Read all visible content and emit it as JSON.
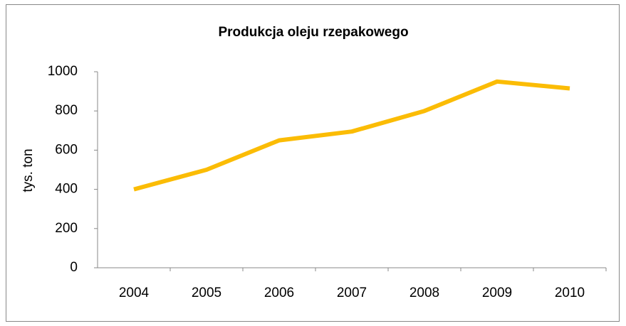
{
  "chart_data": {
    "type": "line",
    "title": "Produkcja oleju rzepakowego",
    "y_label": "tys. ton",
    "categories": [
      "2004",
      "2005",
      "2006",
      "2007",
      "2008",
      "2009",
      "2010"
    ],
    "series": [
      {
        "name": "Produkcja",
        "color": "#fbbc05",
        "values": [
          400,
          500,
          650,
          695,
          800,
          950,
          915
        ]
      }
    ],
    "ylim": [
      0,
      1000
    ],
    "yticks": [
      0,
      200,
      400,
      600,
      800,
      1000
    ],
    "grid": false,
    "legend": false
  }
}
